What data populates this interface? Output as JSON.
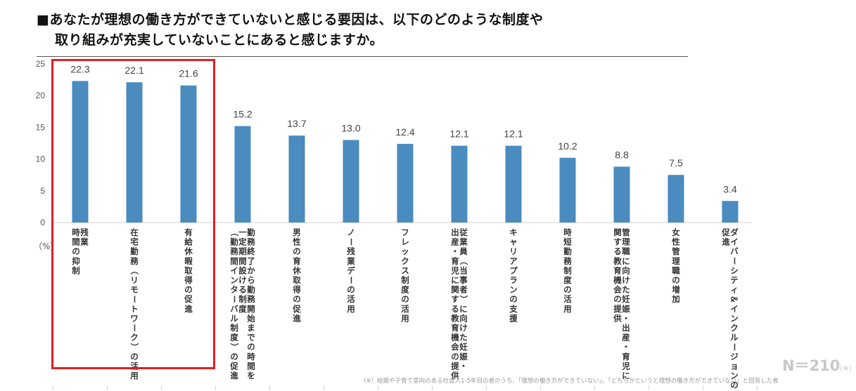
{
  "title": {
    "line1": "■あなたが理想の働き方ができていないと感じる要因は、以下のどのような制度や",
    "line2": "取り組みが充実していないことにあると感じますか。"
  },
  "chart_data": {
    "type": "bar",
    "categories": [
      "残業時間の抑制",
      "在宅勤務（リモートワーク）の活用",
      "有給休暇取得の促進",
      "勤務終了から勤務開始までの時間を一定期間設ける制度（勤務間インターバル制度）の促進",
      "男性の育休取得の促進",
      "ノー残業デーの活用",
      "フレックス制度の活用",
      "従業員（当事者）に向けた妊娠・出産・育児に関する教育機会の提供",
      "キャリアプランの支援",
      "時短勤務制度の活用",
      "管理職に向けた妊娠・出産・育児に関する教育機会の提供",
      "女性管理職の増加",
      "ダイバーシティ＆インクルージョンの促進"
    ],
    "label_columns": [
      [
        "残業",
        "時間の抑制"
      ],
      [
        "在宅勤務（リモートワーク）の活用"
      ],
      [
        "有給休暇取得の促進"
      ],
      [
        "勤務終了から勤務開始までの時間を",
        "一定期間設ける制度",
        "（勤務間インターバル制度）の促進"
      ],
      [
        "男性の育休取得の促進"
      ],
      [
        "ノー残業デーの活用"
      ],
      [
        "フレックス制度の活用"
      ],
      [
        "従業員（当事者）に向けた妊娠・",
        "出産・育児に関する教育機会の提供"
      ],
      [
        "キャリアプランの支援"
      ],
      [
        "時短勤務制度の活用"
      ],
      [
        "管理職に向けた妊娠・出産・育児に",
        "関する教育機会の提供"
      ],
      [
        "女性管理職の増加"
      ],
      [
        "ダイバーシティ＆インクルージョンの",
        "促進"
      ]
    ],
    "values": [
      22.3,
      22.1,
      21.6,
      15.2,
      13.7,
      13.0,
      12.4,
      12.1,
      12.1,
      10.2,
      8.8,
      7.5,
      3.4
    ],
    "value_labels": [
      "22.3",
      "22.1",
      "21.6",
      "15.2",
      "13.7",
      "13.0",
      "12.4",
      "12.1",
      "12.1",
      "10.2",
      "8.8",
      "7.5",
      "3.4"
    ],
    "yticks": [
      "0",
      "5",
      "10",
      "15",
      "20",
      "25"
    ],
    "ylim": [
      0,
      25
    ],
    "ylabel": "（%）",
    "bar_color": "#4a8bc0",
    "highlight_color": "#e02020",
    "highlighted_count": 3
  },
  "sample_size": {
    "label": "N＝210",
    "mark": "(※)"
  },
  "footnote": "（※）結婚や子育て意向のある社会人1-5年目の者のうち、「理想の働き方ができていない」、「どちらかというと理想の働き方ができていない」と回答した者"
}
